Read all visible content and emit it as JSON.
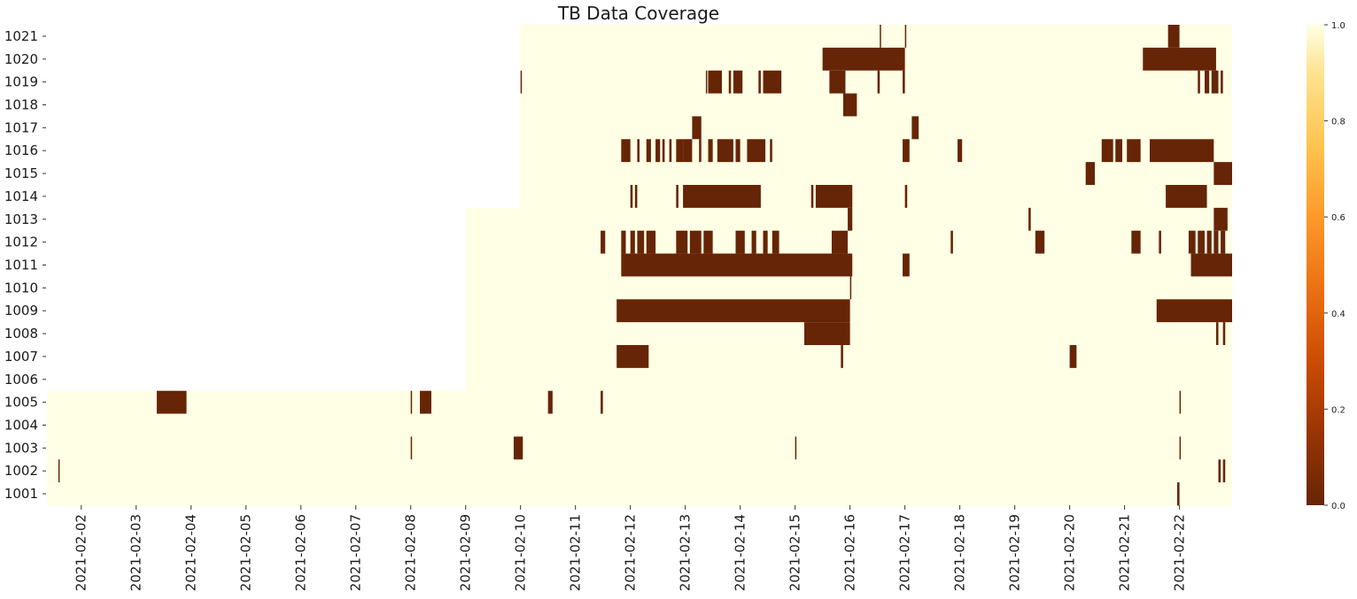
{
  "chart_data": {
    "type": "heatmap",
    "title": "TB Data Coverage",
    "xlabel": "",
    "ylabel": "",
    "rows": [
      "1021",
      "1020",
      "1019",
      "1018",
      "1017",
      "1016",
      "1015",
      "1014",
      "1013",
      "1012",
      "1011",
      "1010",
      "1009",
      "1008",
      "1007",
      "1006",
      "1005",
      "1004",
      "1003",
      "1002",
      "1001"
    ],
    "x_ticks": [
      "2021-02-02",
      "2021-02-03",
      "2021-02-04",
      "2021-02-05",
      "2021-02-06",
      "2021-02-07",
      "2021-02-08",
      "2021-02-09",
      "2021-02-10",
      "2021-02-11",
      "2021-02-12",
      "2021-02-13",
      "2021-02-14",
      "2021-02-15",
      "2021-02-16",
      "2021-02-17",
      "2021-02-18",
      "2021-02-19",
      "2021-02-20",
      "2021-02-21",
      "2021-02-22"
    ],
    "x_range": [
      "2021-02-01 09:00",
      "2021-02-22 23:00"
    ],
    "value_range": [
      0.0,
      1.0
    ],
    "colormap": "YlOrBr_r",
    "colorbar_ticks": [
      "0.0",
      "0.2",
      "0.4",
      "0.6",
      "0.8",
      "1.0"
    ],
    "colors": {
      "low": "#662506",
      "mid": "#ec7014",
      "high": "#ffffe5"
    },
    "grid": false,
    "series": [
      {
        "row": "1021",
        "start": "2021-02-10 00:00",
        "end": "2021-02-22 23:00",
        "gaps": [
          [
            "2021-02-16 13:00",
            "2021-02-16 13:30"
          ],
          [
            "2021-02-17 00:00",
            "2021-02-17 00:30"
          ],
          [
            "2021-02-21 19:00",
            "2021-02-22 00:00"
          ]
        ]
      },
      {
        "row": "1020",
        "start": "2021-02-10 00:00",
        "end": "2021-02-22 23:00",
        "gaps": [
          [
            "2021-02-15 12:00",
            "2021-02-17 00:00"
          ],
          [
            "2021-02-21 08:00",
            "2021-02-22 16:00"
          ]
        ]
      },
      {
        "row": "1019",
        "start": "2021-02-10 00:00",
        "end": "2021-02-22 23:00",
        "gaps": [
          [
            "2021-02-10 00:00",
            "2021-02-10 00:30"
          ],
          [
            "2021-02-13 09:00",
            "2021-02-13 09:30"
          ],
          [
            "2021-02-13 10:00",
            "2021-02-13 16:00"
          ],
          [
            "2021-02-13 19:00",
            "2021-02-13 20:00"
          ],
          [
            "2021-02-13 21:00",
            "2021-02-14 01:00"
          ],
          [
            "2021-02-14 08:00",
            "2021-02-14 09:00"
          ],
          [
            "2021-02-14 10:00",
            "2021-02-14 18:00"
          ],
          [
            "2021-02-15 15:00",
            "2021-02-15 22:00"
          ],
          [
            "2021-02-16 12:00",
            "2021-02-16 13:00"
          ],
          [
            "2021-02-16 23:00",
            "2021-02-17 00:00"
          ],
          [
            "2021-02-22 08:00",
            "2021-02-22 09:00"
          ],
          [
            "2021-02-22 11:00",
            "2021-02-22 13:00"
          ],
          [
            "2021-02-22 14:00",
            "2021-02-22 17:00"
          ],
          [
            "2021-02-22 18:00",
            "2021-02-22 19:00"
          ]
        ]
      },
      {
        "row": "1018",
        "start": "2021-02-10 00:00",
        "end": "2021-02-22 23:00",
        "gaps": [
          [
            "2021-02-15 21:00",
            "2021-02-16 03:00"
          ]
        ]
      },
      {
        "row": "1017",
        "start": "2021-02-10 00:00",
        "end": "2021-02-22 23:00",
        "gaps": [
          [
            "2021-02-13 03:00",
            "2021-02-13 07:00"
          ],
          [
            "2021-02-17 03:00",
            "2021-02-17 06:00"
          ]
        ]
      },
      {
        "row": "1016",
        "start": "2021-02-10 00:00",
        "end": "2021-02-22 23:00",
        "gaps": [
          [
            "2021-02-11 20:00",
            "2021-02-12 00:00"
          ],
          [
            "2021-02-12 03:00",
            "2021-02-12 04:00"
          ],
          [
            "2021-02-12 07:00",
            "2021-02-12 09:00"
          ],
          [
            "2021-02-12 11:00",
            "2021-02-12 13:00"
          ],
          [
            "2021-02-12 14:00",
            "2021-02-12 15:00"
          ],
          [
            "2021-02-12 17:00",
            "2021-02-12 18:00"
          ],
          [
            "2021-02-12 20:00",
            "2021-02-12 23:00"
          ],
          [
            "2021-02-12 23:00",
            "2021-02-13 03:00"
          ],
          [
            "2021-02-13 06:00",
            "2021-02-13 07:00"
          ],
          [
            "2021-02-13 10:00",
            "2021-02-13 12:00"
          ],
          [
            "2021-02-13 14:00",
            "2021-02-13 21:00"
          ],
          [
            "2021-02-13 22:00",
            "2021-02-14 00:00"
          ],
          [
            "2021-02-14 03:00",
            "2021-02-14 11:00"
          ],
          [
            "2021-02-14 13:00",
            "2021-02-14 14:00"
          ],
          [
            "2021-02-16 23:00",
            "2021-02-17 02:00"
          ],
          [
            "2021-02-17 23:00",
            "2021-02-18 01:00"
          ],
          [
            "2021-02-20 14:00",
            "2021-02-20 19:00"
          ],
          [
            "2021-02-20 20:00",
            "2021-02-20 23:00"
          ],
          [
            "2021-02-21 01:00",
            "2021-02-21 07:00"
          ],
          [
            "2021-02-21 11:00",
            "2021-02-22 15:00"
          ]
        ]
      },
      {
        "row": "1015",
        "start": "2021-02-10 00:00",
        "end": "2021-02-22 23:00",
        "gaps": [
          [
            "2021-02-20 07:00",
            "2021-02-20 11:00"
          ],
          [
            "2021-02-22 15:00",
            "2021-02-22 23:00"
          ]
        ]
      },
      {
        "row": "1014",
        "start": "2021-02-10 00:00",
        "end": "2021-02-22 23:00",
        "gaps": [
          [
            "2021-02-12 00:00",
            "2021-02-12 01:00"
          ],
          [
            "2021-02-12 02:00",
            "2021-02-12 03:00"
          ],
          [
            "2021-02-12 20:00",
            "2021-02-12 21:00"
          ],
          [
            "2021-02-12 23:00",
            "2021-02-14 09:00"
          ],
          [
            "2021-02-15 07:00",
            "2021-02-15 08:00"
          ],
          [
            "2021-02-15 09:00",
            "2021-02-16 01:00"
          ],
          [
            "2021-02-17 00:00",
            "2021-02-17 01:00"
          ],
          [
            "2021-02-21 18:00",
            "2021-02-22 12:00"
          ]
        ]
      },
      {
        "row": "1013",
        "start": "2021-02-09 00:00",
        "end": "2021-02-22 23:00",
        "gaps": [
          [
            "2021-02-15 23:00",
            "2021-02-16 01:00"
          ],
          [
            "2021-02-19 06:00",
            "2021-02-19 07:00"
          ],
          [
            "2021-02-22 15:00",
            "2021-02-22 21:00"
          ]
        ]
      },
      {
        "row": "1012",
        "start": "2021-02-09 00:00",
        "end": "2021-02-22 23:00",
        "gaps": [
          [
            "2021-02-11 11:00",
            "2021-02-11 13:00"
          ],
          [
            "2021-02-11 20:00",
            "2021-02-11 22:00"
          ],
          [
            "2021-02-12 00:00",
            "2021-02-12 02:00"
          ],
          [
            "2021-02-12 03:00",
            "2021-02-12 06:00"
          ],
          [
            "2021-02-12 07:00",
            "2021-02-12 11:00"
          ],
          [
            "2021-02-12 20:00",
            "2021-02-13 01:00"
          ],
          [
            "2021-02-13 02:00",
            "2021-02-13 07:00"
          ],
          [
            "2021-02-13 08:00",
            "2021-02-13 12:00"
          ],
          [
            "2021-02-13 22:00",
            "2021-02-14 02:00"
          ],
          [
            "2021-02-14 05:00",
            "2021-02-14 07:00"
          ],
          [
            "2021-02-14 10:00",
            "2021-02-14 12:00"
          ],
          [
            "2021-02-14 14:00",
            "2021-02-14 17:00"
          ],
          [
            "2021-02-15 16:00",
            "2021-02-15 23:00"
          ],
          [
            "2021-02-17 20:00",
            "2021-02-17 21:00"
          ],
          [
            "2021-02-19 09:00",
            "2021-02-19 13:00"
          ],
          [
            "2021-02-21 03:00",
            "2021-02-21 07:00"
          ],
          [
            "2021-02-21 15:00",
            "2021-02-21 16:00"
          ],
          [
            "2021-02-22 04:00",
            "2021-02-22 07:00"
          ],
          [
            "2021-02-22 08:00",
            "2021-02-22 11:00"
          ],
          [
            "2021-02-22 12:00",
            "2021-02-22 14:00"
          ],
          [
            "2021-02-22 15:00",
            "2021-02-22 17:00"
          ],
          [
            "2021-02-22 18:00",
            "2021-02-22 20:00"
          ]
        ]
      },
      {
        "row": "1011",
        "start": "2021-02-09 00:00",
        "end": "2021-02-22 23:00",
        "gaps": [
          [
            "2021-02-11 20:00",
            "2021-02-16 01:00"
          ],
          [
            "2021-02-16 23:00",
            "2021-02-17 02:00"
          ],
          [
            "2021-02-22 05:00",
            "2021-02-22 23:00"
          ]
        ]
      },
      {
        "row": "1010",
        "start": "2021-02-09 00:00",
        "end": "2021-02-22 23:00",
        "gaps": [
          [
            "2021-02-16 00:00",
            "2021-02-16 00:30"
          ]
        ]
      },
      {
        "row": "1009",
        "start": "2021-02-09 00:00",
        "end": "2021-02-22 23:00",
        "gaps": [
          [
            "2021-02-11 18:00",
            "2021-02-16 00:00"
          ],
          [
            "2021-02-21 14:00",
            "2021-02-22 23:00"
          ]
        ]
      },
      {
        "row": "1008",
        "start": "2021-02-09 00:00",
        "end": "2021-02-22 23:00",
        "gaps": [
          [
            "2021-02-15 04:00",
            "2021-02-16 00:00"
          ],
          [
            "2021-02-22 16:00",
            "2021-02-22 17:00"
          ],
          [
            "2021-02-22 19:00",
            "2021-02-22 20:00"
          ]
        ]
      },
      {
        "row": "1007",
        "start": "2021-02-09 00:00",
        "end": "2021-02-22 23:00",
        "gaps": [
          [
            "2021-02-11 18:00",
            "2021-02-12 08:00"
          ],
          [
            "2021-02-15 20:00",
            "2021-02-15 21:00"
          ],
          [
            "2021-02-20 00:00",
            "2021-02-20 03:00"
          ]
        ]
      },
      {
        "row": "1006",
        "start": "2021-02-09 00:00",
        "end": "2021-02-22 23:00",
        "gaps": []
      },
      {
        "row": "1005",
        "start": "2021-02-01 09:00",
        "end": "2021-02-22 23:00",
        "gaps": [
          [
            "2021-02-03 09:00",
            "2021-02-03 22:00"
          ],
          [
            "2021-02-08 00:00",
            "2021-02-08 00:30"
          ],
          [
            "2021-02-08 04:00",
            "2021-02-08 09:00"
          ],
          [
            "2021-02-10 12:00",
            "2021-02-10 14:00"
          ],
          [
            "2021-02-11 11:00",
            "2021-02-11 12:00"
          ],
          [
            "2021-02-22 00:00",
            "2021-02-22 00:30"
          ]
        ]
      },
      {
        "row": "1004",
        "start": "2021-02-01 09:00",
        "end": "2021-02-22 23:00",
        "gaps": []
      },
      {
        "row": "1003",
        "start": "2021-02-01 09:00",
        "end": "2021-02-22 23:00",
        "gaps": [
          [
            "2021-02-08 00:00",
            "2021-02-08 00:30"
          ],
          [
            "2021-02-09 21:00",
            "2021-02-10 01:00"
          ],
          [
            "2021-02-15 00:00",
            "2021-02-15 00:30"
          ],
          [
            "2021-02-22 00:00",
            "2021-02-22 00:30"
          ]
        ]
      },
      {
        "row": "1002",
        "start": "2021-02-01 09:00",
        "end": "2021-02-22 23:00",
        "gaps": [
          [
            "2021-02-01 14:00",
            "2021-02-01 14:30"
          ],
          [
            "2021-02-22 17:00",
            "2021-02-22 18:00"
          ],
          [
            "2021-02-22 19:00",
            "2021-02-22 20:00"
          ]
        ]
      },
      {
        "row": "1001",
        "start": "2021-02-01 09:00",
        "end": "2021-02-22 23:00",
        "gaps": [
          [
            "2021-02-21 23:00",
            "2021-02-22 00:00"
          ]
        ]
      }
    ]
  }
}
